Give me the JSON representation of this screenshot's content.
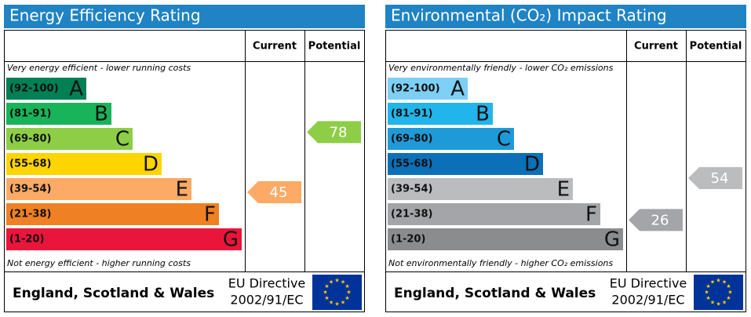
{
  "panels": [
    {
      "title": "Energy Efficiency Rating",
      "col_current": "Current",
      "col_potential": "Potential",
      "top_note": "Very energy efficient - lower running costs",
      "bottom_note": "Not energy efficient - higher running costs",
      "bands": [
        {
          "range": "(92-100)",
          "letter": "A",
          "color": "#008054"
        },
        {
          "range": "(81-91)",
          "letter": "B",
          "color": "#19b459"
        },
        {
          "range": "(69-80)",
          "letter": "C",
          "color": "#8dce46"
        },
        {
          "range": "(55-68)",
          "letter": "D",
          "color": "#ffd500"
        },
        {
          "range": "(39-54)",
          "letter": "E",
          "color": "#fcaa65"
        },
        {
          "range": "(21-38)",
          "letter": "F",
          "color": "#ef8023"
        },
        {
          "range": "(1-20)",
          "letter": "G",
          "color": "#e9153b"
        }
      ],
      "current": 45,
      "current_color": "#fcaa65",
      "potential": 78,
      "potential_color": "#8dce46",
      "region": "England, Scotland & Wales",
      "directive": "EU Directive",
      "directive_number": "2002/91/EC"
    },
    {
      "title": "Environmental (CO₂) Impact Rating",
      "col_current": "Current",
      "col_potential": "Potential",
      "top_note": "Very environmentally friendly - lower CO₂ emissions",
      "bottom_note": "Not environmentally friendly - higher CO₂ emissions",
      "bands": [
        {
          "range": "(92-100)",
          "letter": "A",
          "color": "#7dcff5"
        },
        {
          "range": "(81-91)",
          "letter": "B",
          "color": "#22b5eb"
        },
        {
          "range": "(69-80)",
          "letter": "C",
          "color": "#1f9ad8"
        },
        {
          "range": "(55-68)",
          "letter": "D",
          "color": "#0c70b9"
        },
        {
          "range": "(39-54)",
          "letter": "E",
          "color": "#bbbcbe"
        },
        {
          "range": "(21-38)",
          "letter": "F",
          "color": "#a3a5a8"
        },
        {
          "range": "(1-20)",
          "letter": "G",
          "color": "#8a8c8e"
        }
      ],
      "current": 26,
      "current_color": "#a3a5a8",
      "potential": 54,
      "potential_color": "#bbbcbe",
      "region": "England, Scotland & Wales",
      "directive": "EU Directive",
      "directive_number": "2002/91/EC"
    }
  ]
}
